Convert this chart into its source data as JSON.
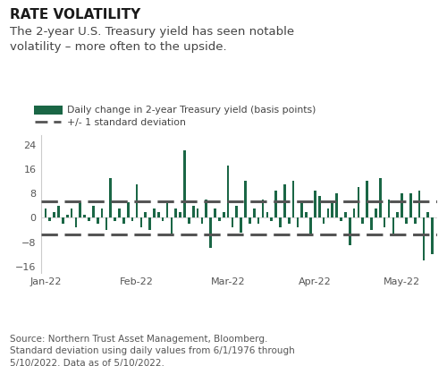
{
  "title": "RATE VOLATILITY",
  "subtitle": "The 2-year U.S. Treasury yield has seen notable\nvolatility – more often to the upside.",
  "legend_bar_label": "Daily change in 2-year Treasury yield (basis points)",
  "legend_line_label": "+/- 1 standard deviation",
  "std_dev": 5.5,
  "bar_color": "#1a6645",
  "std_line_color": "#555555",
  "background_color": "#ffffff",
  "source_text": "Source: Northern Trust Asset Management, Bloomberg.\nStandard deviation using daily values from 6/1/1976 through\n5/10/2022. Data as of 5/10/2022.",
  "ylim": [
    -18,
    27
  ],
  "yticks": [
    -16,
    -8,
    0,
    8,
    16,
    24
  ],
  "values": [
    3,
    -1,
    2,
    4,
    -2,
    1,
    3,
    -3,
    5,
    1,
    -1,
    4,
    -2,
    3,
    -4,
    13,
    -1,
    3,
    -2,
    5,
    -1,
    11,
    -3,
    2,
    -4,
    3,
    2,
    -1,
    5,
    -6,
    3,
    2,
    22,
    -2,
    4,
    3,
    -2,
    6,
    -10,
    3,
    -1,
    2,
    17,
    -3,
    4,
    -5,
    12,
    -2,
    3,
    -2,
    6,
    2,
    -1,
    9,
    -3,
    11,
    -2,
    12,
    -3,
    5,
    2,
    -6,
    9,
    7,
    -2,
    3,
    5,
    8,
    -1,
    2,
    -9,
    3,
    10,
    -2,
    12,
    -4,
    3,
    13,
    -3,
    6,
    -6,
    2,
    8,
    -2,
    8,
    -2,
    9,
    -14,
    2,
    -12
  ],
  "month_tick_positions": [
    0,
    21,
    42,
    62,
    82
  ],
  "month_tick_labels": [
    "Jan-22",
    "Feb-22",
    "Mar-22",
    "Apr-22",
    "May-22"
  ],
  "title_fontsize": 11,
  "subtitle_fontsize": 9.5,
  "legend_fontsize": 7.8,
  "source_fontsize": 7.5,
  "tick_fontsize": 8
}
